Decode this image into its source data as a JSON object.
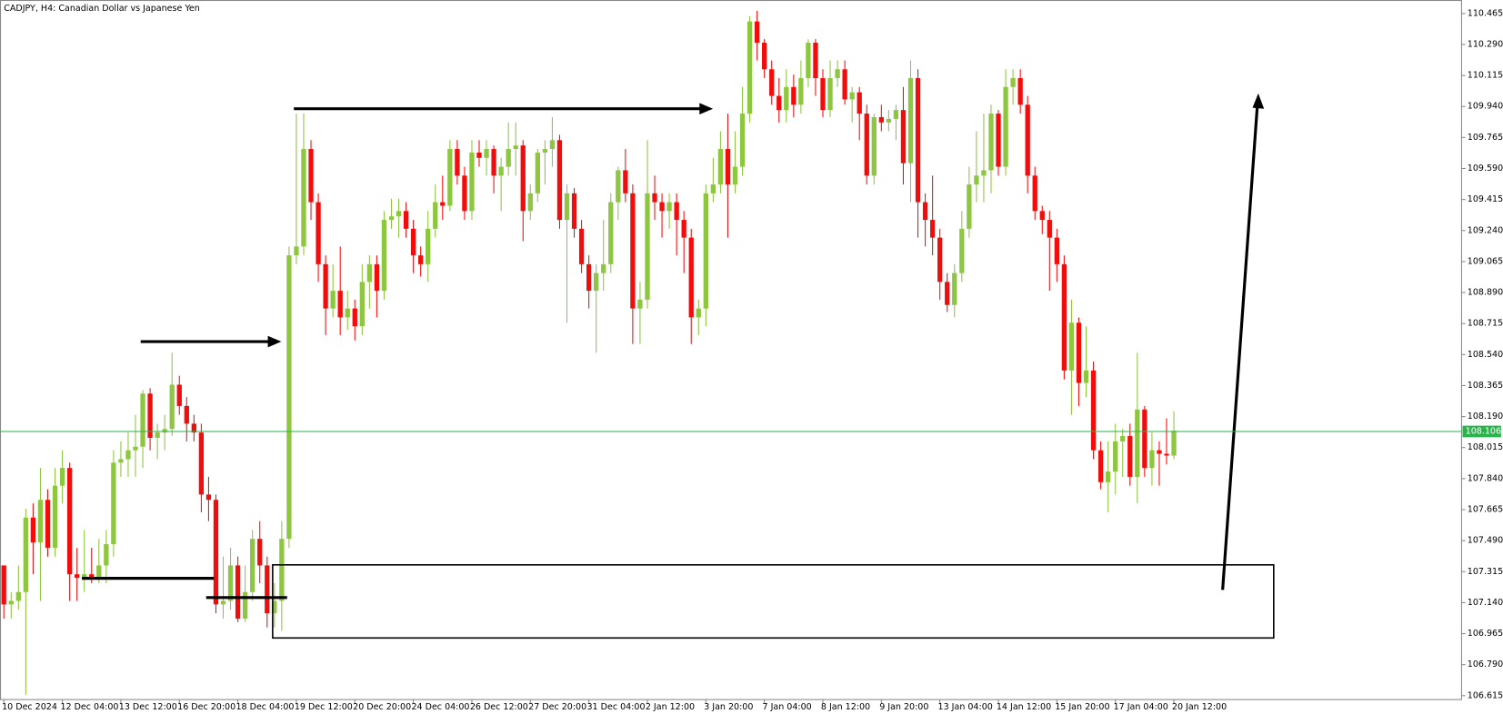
{
  "chart_data": {
    "type": "candlestick",
    "title": "CADJPY, H4:  Canadian Dollar vs Japanese Yen",
    "categories": [
      "10 Dec 2024",
      null,
      null,
      null,
      null,
      null,
      null,
      null,
      "12 Dec 04:00",
      null,
      null,
      null,
      null,
      null,
      null,
      null,
      "13 Dec 12:00",
      null,
      null,
      null,
      null,
      null,
      null,
      null,
      "16 Dec 20:00",
      null,
      null,
      null,
      null,
      null,
      null,
      null,
      "18 Dec 04:00",
      null,
      null,
      null,
      null,
      null,
      null,
      null,
      "19 Dec 12:00",
      null,
      null,
      null,
      null,
      null,
      null,
      null,
      "20 Dec 20:00",
      null,
      null,
      null,
      null,
      null,
      null,
      null,
      "24 Dec 04:00",
      null,
      null,
      null,
      null,
      null,
      null,
      null,
      "26 Dec 12:00",
      null,
      null,
      null,
      null,
      null,
      null,
      null,
      "27 Dec 20:00",
      null,
      null,
      null,
      null,
      null,
      null,
      null,
      "31 Dec 04:00",
      null,
      null,
      null,
      null,
      null,
      null,
      null,
      "2 Jan 12:00",
      null,
      null,
      null,
      null,
      null,
      null,
      null,
      "3 Jan 20:00",
      null,
      null,
      null,
      null,
      null,
      null,
      null,
      "7 Jan 04:00",
      null,
      null,
      null,
      null,
      null,
      null,
      null,
      "8 Jan 12:00",
      null,
      null,
      null,
      null,
      null,
      null,
      null,
      "9 Jan 20:00",
      null,
      null,
      null,
      null,
      null,
      null,
      null,
      "13 Jan 04:00",
      null,
      null,
      null,
      null,
      null,
      null,
      null,
      "14 Jan 12:00",
      null,
      null,
      null,
      null,
      null,
      null,
      null,
      "15 Jan 20:00",
      null,
      null,
      null,
      null,
      null,
      null,
      null,
      "17 Jan 04:00",
      null,
      null,
      null,
      null,
      null,
      null,
      null,
      "20 Jan 12:00"
    ],
    "open": [
      107.35,
      107.13,
      107.15,
      107.2,
      107.62,
      107.48,
      107.72,
      107.45,
      107.8,
      107.9,
      107.3,
      107.28,
      107.3,
      107.28,
      107.35,
      107.47,
      107.93,
      107.95,
      108.0,
      108.02,
      108.32,
      108.07,
      108.1,
      108.12,
      108.37,
      108.25,
      108.15,
      108.1,
      107.75,
      107.72,
      107.13,
      107.15,
      107.35,
      107.05,
      107.2,
      107.5,
      107.35,
      107.08,
      107.15,
      107.5,
      109.1,
      109.15,
      109.7,
      109.4,
      109.05,
      108.8,
      108.9,
      108.75,
      108.8,
      108.7,
      108.95,
      109.05,
      108.9,
      109.3,
      109.32,
      109.35,
      109.25,
      109.1,
      109.05,
      109.25,
      109.4,
      109.38,
      109.7,
      109.55,
      109.35,
      109.68,
      109.65,
      109.7,
      109.55,
      109.6,
      109.7,
      109.72,
      109.35,
      109.45,
      109.68,
      109.7,
      109.75,
      109.3,
      109.45,
      109.25,
      109.05,
      108.9,
      109.0,
      109.05,
      109.4,
      109.58,
      109.45,
      108.8,
      108.85,
      109.45,
      109.4,
      109.35,
      109.4,
      109.3,
      109.2,
      108.75,
      108.8,
      109.45,
      109.5,
      109.7,
      109.5,
      109.6,
      109.9,
      110.42,
      110.3,
      110.15,
      110.0,
      109.92,
      110.05,
      109.95,
      110.1,
      110.3,
      110.1,
      109.92,
      110.1,
      110.15,
      109.98,
      110.02,
      109.9,
      109.55,
      109.88,
      109.85,
      109.87,
      109.92,
      109.62,
      110.1,
      109.4,
      109.3,
      109.2,
      108.95,
      108.82,
      109.0,
      109.25,
      109.5,
      109.55,
      109.58,
      109.9,
      109.6,
      110.05,
      110.1,
      109.95,
      109.55,
      109.35,
      109.3,
      109.2,
      109.05,
      108.45,
      108.72,
      108.38,
      108.45,
      108.0,
      107.82,
      107.88,
      108.05,
      108.08,
      107.85,
      108.23,
      107.9,
      108.0,
      107.98,
      107.97
    ],
    "high": [
      107.35,
      107.2,
      107.35,
      107.67,
      107.7,
      107.9,
      107.78,
      107.9,
      108.0,
      107.93,
      107.45,
      107.55,
      107.45,
      107.5,
      107.55,
      108.0,
      108.05,
      108.1,
      108.2,
      108.34,
      108.35,
      108.15,
      108.2,
      108.55,
      108.42,
      108.3,
      108.2,
      108.15,
      107.85,
      107.75,
      107.4,
      107.45,
      107.4,
      107.35,
      107.55,
      107.6,
      107.4,
      107.25,
      107.6,
      109.15,
      109.9,
      109.9,
      109.75,
      109.45,
      109.1,
      109.05,
      109.15,
      108.9,
      108.85,
      109.05,
      109.1,
      109.1,
      109.35,
      109.42,
      109.42,
      109.4,
      109.3,
      109.15,
      109.35,
      109.5,
      109.55,
      109.75,
      109.75,
      109.6,
      109.75,
      109.75,
      109.75,
      109.72,
      109.65,
      109.85,
      109.85,
      109.75,
      109.5,
      109.7,
      109.75,
      109.88,
      109.78,
      109.5,
      109.48,
      109.3,
      109.1,
      109.05,
      109.3,
      109.45,
      109.6,
      109.7,
      109.5,
      108.95,
      109.75,
      109.55,
      109.45,
      109.45,
      109.45,
      109.35,
      109.25,
      108.85,
      109.5,
      109.65,
      109.8,
      109.9,
      109.8,
      110.05,
      110.45,
      110.48,
      110.32,
      110.2,
      110.1,
      110.15,
      110.12,
      110.2,
      110.32,
      110.32,
      110.15,
      110.2,
      110.2,
      110.2,
      110.05,
      110.05,
      109.95,
      109.9,
      109.95,
      109.92,
      109.95,
      110.05,
      110.2,
      110.15,
      109.45,
      109.55,
      109.25,
      109.0,
      109.05,
      109.35,
      109.6,
      109.8,
      109.9,
      109.95,
      109.92,
      110.15,
      110.15,
      110.15,
      110.0,
      109.6,
      109.38,
      109.35,
      109.25,
      109.1,
      108.85,
      108.75,
      108.7,
      108.5,
      108.05,
      108.05,
      108.15,
      108.12,
      108.15,
      108.55,
      108.25,
      108.1,
      108.05,
      108.18,
      108.22
    ],
    "low": [
      107.05,
      107.05,
      107.1,
      106.62,
      107.3,
      107.15,
      107.4,
      107.4,
      107.7,
      107.15,
      107.15,
      107.2,
      107.25,
      107.25,
      107.25,
      107.4,
      107.85,
      107.85,
      107.85,
      107.9,
      108.0,
      107.95,
      108.0,
      108.08,
      108.2,
      108.05,
      108.05,
      107.65,
      107.6,
      107.08,
      107.05,
      107.1,
      107.03,
      107.03,
      107.15,
      107.25,
      107.0,
      107.0,
      106.98,
      107.45,
      109.05,
      109.1,
      109.3,
      108.95,
      108.65,
      108.75,
      108.65,
      108.68,
      108.62,
      108.65,
      108.8,
      108.75,
      108.85,
      109.25,
      109.2,
      109.2,
      109.0,
      108.98,
      108.95,
      109.2,
      109.3,
      109.35,
      109.5,
      109.3,
      109.3,
      109.6,
      109.55,
      109.45,
      109.35,
      109.55,
      109.55,
      109.18,
      109.3,
      109.4,
      109.5,
      109.6,
      109.25,
      108.72,
      109.2,
      109.0,
      108.8,
      108.55,
      108.9,
      109.0,
      109.3,
      109.4,
      108.6,
      108.6,
      108.8,
      109.3,
      109.2,
      109.25,
      109.1,
      109.0,
      108.6,
      108.65,
      108.7,
      109.4,
      109.45,
      109.2,
      109.45,
      109.55,
      109.85,
      110.2,
      110.1,
      109.95,
      109.85,
      109.85,
      109.88,
      109.9,
      110.05,
      110.0,
      109.88,
      109.88,
      110.05,
      109.95,
      109.85,
      109.75,
      109.5,
      109.5,
      109.8,
      109.8,
      109.75,
      109.5,
      109.4,
      109.2,
      109.15,
      109.1,
      108.85,
      108.78,
      108.75,
      108.95,
      109.2,
      109.4,
      109.4,
      109.45,
      109.55,
      109.55,
      109.95,
      109.9,
      109.45,
      109.3,
      109.22,
      108.9,
      108.95,
      108.4,
      108.2,
      108.25,
      108.3,
      107.95,
      107.78,
      107.65,
      107.75,
      107.85,
      107.8,
      107.7,
      107.85,
      107.8,
      107.8,
      107.92,
      107.95
    ],
    "close": [
      107.13,
      107.15,
      107.2,
      107.62,
      107.48,
      107.72,
      107.45,
      107.8,
      107.9,
      107.3,
      107.28,
      107.3,
      107.28,
      107.35,
      107.47,
      107.93,
      107.95,
      108.0,
      108.02,
      108.32,
      108.07,
      108.1,
      108.12,
      108.37,
      108.25,
      108.15,
      108.1,
      107.75,
      107.72,
      107.13,
      107.15,
      107.35,
      107.05,
      107.2,
      107.5,
      107.35,
      107.08,
      107.15,
      107.5,
      109.1,
      109.15,
      109.7,
      109.4,
      109.05,
      108.8,
      108.9,
      108.75,
      108.8,
      108.7,
      108.95,
      109.05,
      108.9,
      109.3,
      109.32,
      109.35,
      109.25,
      109.1,
      109.05,
      109.25,
      109.4,
      109.38,
      109.7,
      109.55,
      109.35,
      109.68,
      109.65,
      109.7,
      109.55,
      109.6,
      109.7,
      109.72,
      109.35,
      109.45,
      109.68,
      109.7,
      109.75,
      109.3,
      109.45,
      109.25,
      109.05,
      108.9,
      109.0,
      109.05,
      109.4,
      109.58,
      109.45,
      108.8,
      108.85,
      109.45,
      109.4,
      109.35,
      109.4,
      109.3,
      109.2,
      108.75,
      108.8,
      109.45,
      109.5,
      109.7,
      109.5,
      109.6,
      109.9,
      110.42,
      110.3,
      110.15,
      110.0,
      109.92,
      110.05,
      109.95,
      110.1,
      110.3,
      110.1,
      109.92,
      110.1,
      110.15,
      109.98,
      110.02,
      109.9,
      109.55,
      109.88,
      109.85,
      109.87,
      109.92,
      109.62,
      110.1,
      109.4,
      109.3,
      109.2,
      108.95,
      108.82,
      109.0,
      109.25,
      109.5,
      109.55,
      109.58,
      109.9,
      109.6,
      110.05,
      110.1,
      109.95,
      109.55,
      109.35,
      109.3,
      109.2,
      109.05,
      108.45,
      108.72,
      108.38,
      108.45,
      108.0,
      107.82,
      107.88,
      108.05,
      108.08,
      107.85,
      108.23,
      107.9,
      108.0,
      107.98,
      107.97,
      108.11
    ],
    "up_color": "#8dc63f",
    "down_color": "#f20d0d",
    "current_price": 108.106,
    "current_price_color": "#2ab34a",
    "ylim": [
      106.593,
      110.541
    ],
    "yticks": [
      110.465,
      {
        "value": 110.29,
        "label": "110.290"
      },
      110.115,
      {
        "value": 109.94,
        "label": "109.940"
      },
      109.765,
      {
        "value": 109.59,
        "label": "109.590"
      },
      109.415,
      {
        "value": 109.24,
        "label": "109.240"
      },
      109.065,
      {
        "value": 108.89,
        "label": "108.890"
      },
      108.715,
      {
        "value": 108.54,
        "label": "108.540"
      },
      108.365,
      {
        "value": 108.19,
        "label": "108.190"
      },
      108.015,
      {
        "value": 107.84,
        "label": "107.840"
      },
      107.665,
      {
        "value": 107.49,
        "label": "107.490"
      },
      107.315,
      {
        "value": 107.14,
        "label": "107.140"
      },
      106.965,
      {
        "value": 106.79,
        "label": "106.790"
      },
      106.615
    ]
  }
}
